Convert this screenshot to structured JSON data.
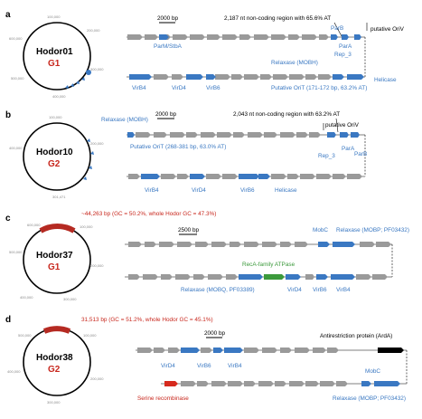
{
  "panels": [
    {
      "letter": "a",
      "name": "Hodor01",
      "group": "G1",
      "genome_ticks": [
        "100,000",
        "200,000",
        "300,000",
        "400,000",
        "500,000",
        "600,000"
      ],
      "scale_label": "2000 bp",
      "noncoding_note": "2,187 nt non-coding region with 65.6% AT",
      "putative_label": "putative OriV",
      "genes": {
        "parm": "ParM/StbA",
        "parb": "ParB",
        "para": "ParA",
        "rep3": "Rep_3",
        "relaxase": "Relaxase (MOBH)",
        "helicase": "Helicase",
        "virb4": "VirB4",
        "virD4": "VirD4",
        "virb6": "VirB6",
        "orit": "Putative OriT (171-172 bp, 63.2% AT)"
      }
    },
    {
      "letter": "b",
      "name": "Hodor10",
      "group": "G2",
      "genome_ticks": [
        "100,000",
        "200,000",
        "301,471",
        "400,000"
      ],
      "scale_label": "2000 bp",
      "noncoding_note": "2,043 nt non-coding region with 63.2% AT",
      "putative_label": "putative OriV",
      "genes": {
        "relaxase": "Relaxase (MOBH)",
        "orit": "Putative OriT (268-381 bp, 63.0% AT)",
        "rep3": "Rep_3",
        "para": "ParA",
        "parb": "ParB",
        "virb4": "VirB4",
        "virD4": "VirD4",
        "virb6": "VirB6",
        "helicase": "Helicase"
      }
    },
    {
      "letter": "c",
      "name": "Hodor37",
      "group": "G1",
      "genome_ticks": [
        "100,000",
        "200,000",
        "300,000",
        "400,000",
        "500,000",
        "600,000"
      ],
      "region_note": "~44,263 bp (GC = 50.2%, whole Hodor GC = 47.3%)",
      "scale_label": "2500 bp",
      "genes": {
        "mobc": "MobC",
        "relaxase_mobp": "Relaxase (MOBP; PF03432)",
        "reca": "RecA-family ATPase",
        "relaxase_mobq": "Relaxase (MOBQ, PF03389)",
        "virD4": "VirD4",
        "virb6": "VirB6",
        "virb4": "VirB4"
      }
    },
    {
      "letter": "d",
      "name": "Hodor38",
      "group": "G2",
      "genome_ticks": [
        "100,000",
        "200,000",
        "300,000",
        "400,000",
        "500,000"
      ],
      "region_note": "31,513 bp (GC = 51.2%, whole Hodor GC = 45.1%)",
      "scale_label": "2000 bp",
      "genes": {
        "ardA": "Antirestriction protein (ArdA)",
        "virD4": "VirD4",
        "virb6": "VirB6",
        "virb4": "VirB4",
        "serine": "Serine recombinase",
        "mobc": "MobC",
        "relaxase_mobp": "Relaxase (MOBP; PF03432)"
      }
    }
  ],
  "colors": {
    "backbone": "#7f7f7f",
    "gene_grey": "#9a9a9a",
    "gene_blue": "#3a78c2",
    "group_red": "#c8281e",
    "recombinase_red": "#d62a1e",
    "atpase_green": "#3c9a3c",
    "ardA_black": "#000000",
    "gc_region": "#b52a22"
  }
}
